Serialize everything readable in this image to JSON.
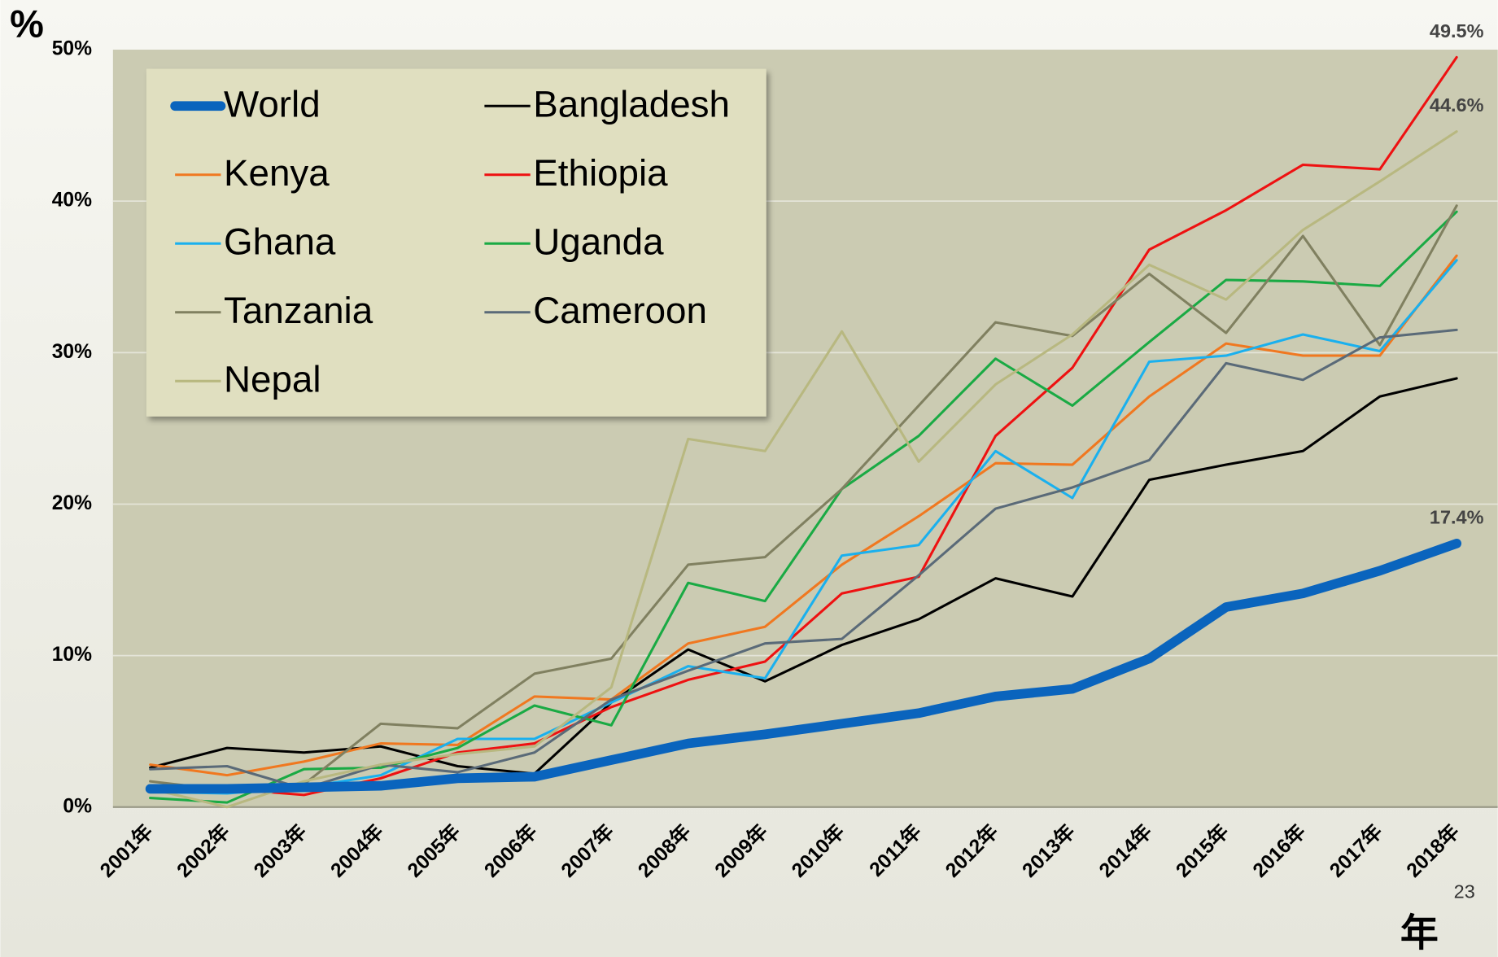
{
  "chart_data": {
    "type": "line",
    "ylabel": "%",
    "xlabel": "年",
    "page_number": "23",
    "categories": [
      "2001年",
      "2002年",
      "2003年",
      "2004年",
      "2005年",
      "2006年",
      "2007年",
      "2008年",
      "2009年",
      "2010年",
      "2011年",
      "2012年",
      "2013年",
      "2014年",
      "2015年",
      "2016年",
      "2017年",
      "2018年"
    ],
    "ylim": [
      0,
      50
    ],
    "yticks": [
      {
        "value": 0,
        "label": "0%"
      },
      {
        "value": 10,
        "label": "10%"
      },
      {
        "value": 20,
        "label": "20%"
      },
      {
        "value": 30,
        "label": "30%"
      },
      {
        "value": 40,
        "label": "40%"
      },
      {
        "value": 50,
        "label": "50%"
      }
    ],
    "grid": true,
    "legend": "upper left",
    "series": [
      {
        "name": "World",
        "color": "#0a64bd",
        "values": [
          1.2,
          1.2,
          1.3,
          1.4,
          1.9,
          2.0,
          3.1,
          4.2,
          4.8,
          5.5,
          6.2,
          7.3,
          7.8,
          9.8,
          13.2,
          14.1,
          15.6,
          17.4
        ],
        "value_labels": [
          null,
          null,
          null,
          null,
          null,
          null,
          null,
          null,
          null,
          null,
          null,
          null,
          null,
          null,
          null,
          null,
          null,
          "17.4%"
        ]
      },
      {
        "name": "Bangladesh",
        "color": "#000000",
        "values": [
          2.6,
          3.9,
          3.6,
          4.0,
          2.7,
          2.2,
          6.9,
          10.4,
          8.3,
          10.7,
          12.4,
          15.1,
          13.9,
          21.6,
          22.6,
          23.5,
          27.1,
          28.3
        ]
      },
      {
        "name": "Kenya",
        "color": "#f07820",
        "values": [
          2.8,
          2.1,
          3.0,
          4.2,
          4.1,
          7.3,
          7.1,
          10.8,
          11.9,
          16.0,
          19.2,
          22.7,
          22.6,
          27.1,
          30.6,
          29.8,
          29.8,
          36.4
        ]
      },
      {
        "name": "Ethiopia",
        "color": "#ee1111",
        "values": [
          1.0,
          1.2,
          0.8,
          1.9,
          3.6,
          4.2,
          6.6,
          8.4,
          9.6,
          14.1,
          15.2,
          24.5,
          29.0,
          36.8,
          39.4,
          42.4,
          42.1,
          49.5
        ],
        "value_labels": [
          null,
          null,
          null,
          null,
          null,
          null,
          null,
          null,
          null,
          null,
          null,
          null,
          null,
          null,
          null,
          null,
          null,
          "49.5%"
        ]
      },
      {
        "name": "Ghana",
        "color": "#1ab0ee",
        "values": [
          1.0,
          0.9,
          1.3,
          2.1,
          4.5,
          4.5,
          6.9,
          9.3,
          8.5,
          16.6,
          17.3,
          23.5,
          20.4,
          29.4,
          29.8,
          31.2,
          30.1,
          36.1
        ]
      },
      {
        "name": "Uganda",
        "color": "#1aaa44",
        "values": [
          0.6,
          0.3,
          2.5,
          2.6,
          3.9,
          6.7,
          5.4,
          14.8,
          13.6,
          21.0,
          24.5,
          29.6,
          26.5,
          30.7,
          34.8,
          34.7,
          34.4,
          39.3
        ]
      },
      {
        "name": "Tanzania",
        "color": "#808060",
        "values": [
          1.7,
          1.1,
          1.5,
          5.5,
          5.2,
          8.8,
          9.8,
          16.0,
          16.5,
          21.0,
          26.5,
          32.0,
          31.1,
          35.2,
          31.3,
          37.7,
          30.5,
          39.7
        ]
      },
      {
        "name": "Cameroon",
        "color": "#5a6a78",
        "values": [
          2.5,
          2.7,
          1.2,
          2.8,
          2.3,
          3.6,
          7.1,
          9.0,
          10.8,
          11.1,
          15.3,
          19.7,
          21.1,
          22.9,
          29.3,
          28.2,
          31.0,
          31.5
        ]
      },
      {
        "name": "Nepal",
        "color": "#b8b880",
        "values": [
          1.2,
          0.0,
          1.7,
          2.8,
          3.5,
          4.0,
          7.9,
          24.3,
          23.5,
          31.4,
          22.8,
          27.9,
          31.2,
          35.8,
          33.5,
          38.1,
          41.3,
          44.6
        ],
        "value_labels": [
          null,
          null,
          null,
          null,
          null,
          null,
          null,
          null,
          null,
          null,
          null,
          null,
          null,
          null,
          null,
          null,
          null,
          "44.6%"
        ]
      }
    ]
  }
}
